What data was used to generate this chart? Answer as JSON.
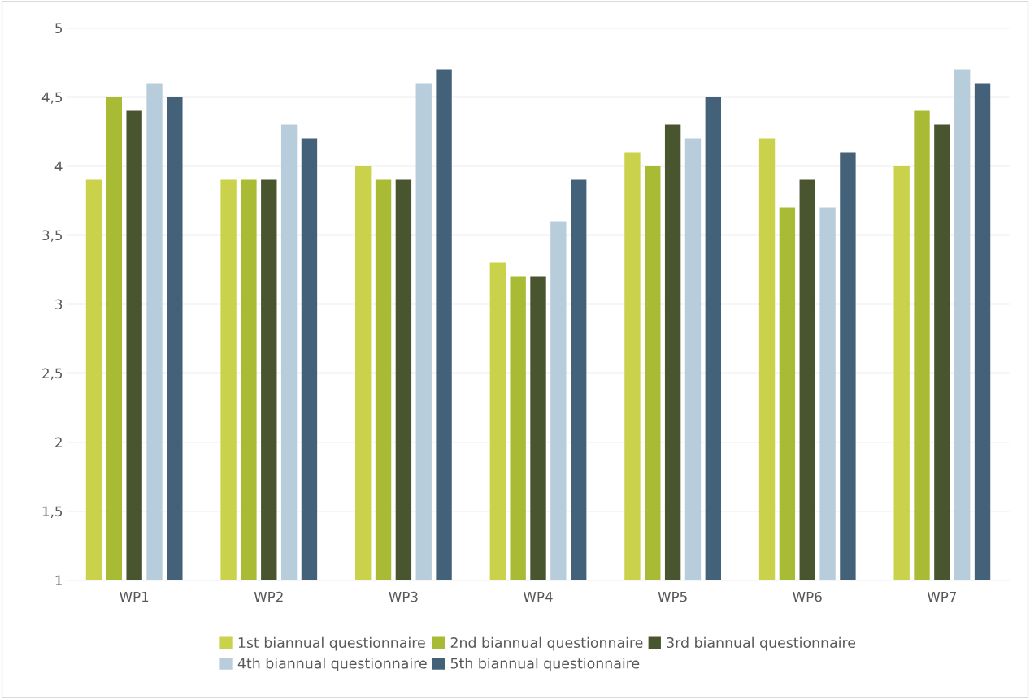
{
  "chart_data": {
    "type": "bar",
    "categories": [
      "WP1",
      "WP2",
      "WP3",
      "WP4",
      "WP5",
      "WP6",
      "WP7"
    ],
    "series": [
      {
        "name": "1st biannual questionnaire",
        "color": "#c9d24a",
        "values": [
          3.9,
          3.9,
          4.0,
          3.3,
          4.1,
          4.2,
          4.0
        ]
      },
      {
        "name": "2nd biannual questionnaire",
        "color": "#a9bb35",
        "values": [
          4.5,
          3.9,
          3.9,
          3.2,
          4.0,
          3.7,
          4.4
        ]
      },
      {
        "name": "3rd biannual questionnaire",
        "color": "#48552e",
        "values": [
          4.4,
          3.9,
          3.9,
          3.2,
          4.3,
          3.9,
          4.3
        ]
      },
      {
        "name": "4th biannual questionnaire",
        "color": "#b8cddb",
        "values": [
          4.6,
          4.3,
          4.6,
          3.6,
          4.2,
          3.7,
          4.7
        ]
      },
      {
        "name": "5th biannual questionnaire",
        "color": "#436178",
        "values": [
          4.5,
          4.2,
          4.7,
          3.9,
          4.5,
          4.1,
          4.6
        ]
      }
    ],
    "ylim": [
      1,
      5
    ],
    "yticks": [
      1,
      {
        "value": 1.5,
        "label": "1,5"
      },
      2,
      {
        "value": 2.5,
        "label": "2,5"
      },
      3,
      {
        "value": 3.5,
        "label": "3,5"
      },
      4,
      {
        "value": 4.5,
        "label": "4,5"
      },
      5
    ],
    "grid": "y",
    "legend": "bottom"
  }
}
